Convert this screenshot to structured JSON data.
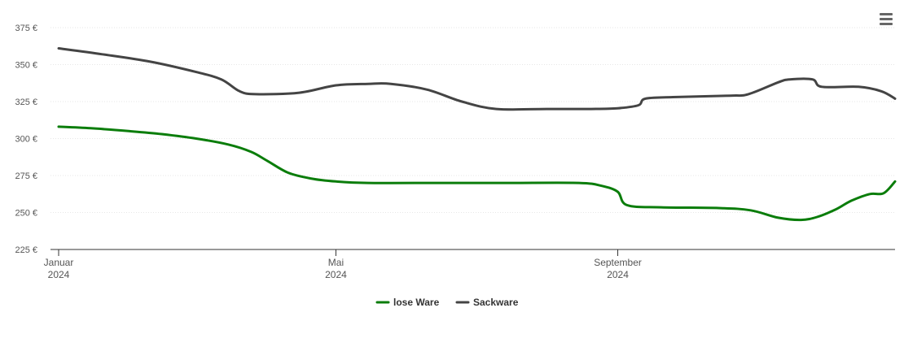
{
  "chart_data": {
    "type": "line",
    "x_axis": {
      "type": "datetime",
      "range": [
        "2024-01-01",
        "2024-12-31"
      ],
      "ticks": [
        {
          "date": "2024-01-01",
          "label": "Januar",
          "year": "2024"
        },
        {
          "date": "2024-05-01",
          "label": "Mai",
          "year": "2024"
        },
        {
          "date": "2024-09-01",
          "label": "September",
          "year": "2024"
        }
      ]
    },
    "y_axis": {
      "ylim": [
        225,
        375
      ],
      "ticks": [
        225,
        250,
        275,
        300,
        325,
        350,
        375
      ],
      "tick_labels": [
        "225 €",
        "250 €",
        "275 €",
        "300 €",
        "325 €",
        "350 €",
        "375 €"
      ]
    },
    "grid": true,
    "legend": "bottom-center",
    "series": [
      {
        "name": "lose Ware",
        "color": "#0b7d0b",
        "points": [
          [
            "2024-01-01",
            308
          ],
          [
            "2024-01-15",
            307
          ],
          [
            "2024-02-01",
            305
          ],
          [
            "2024-02-15",
            303
          ],
          [
            "2024-03-01",
            300
          ],
          [
            "2024-03-15",
            296
          ],
          [
            "2024-03-25",
            291
          ],
          [
            "2024-04-01",
            285
          ],
          [
            "2024-04-10",
            277
          ],
          [
            "2024-04-20",
            273
          ],
          [
            "2024-05-01",
            271
          ],
          [
            "2024-05-15",
            270
          ],
          [
            "2024-06-15",
            270
          ],
          [
            "2024-07-15",
            270
          ],
          [
            "2024-08-15",
            270
          ],
          [
            "2024-08-25",
            268
          ],
          [
            "2024-09-01",
            264
          ],
          [
            "2024-09-05",
            255
          ],
          [
            "2024-09-20",
            253.5
          ],
          [
            "2024-10-15",
            253
          ],
          [
            "2024-10-29",
            251.5
          ],
          [
            "2024-11-10",
            246.5
          ],
          [
            "2024-11-20",
            245
          ],
          [
            "2024-11-27",
            247
          ],
          [
            "2024-12-05",
            252
          ],
          [
            "2024-12-12",
            258
          ],
          [
            "2024-12-20",
            262.5
          ],
          [
            "2024-12-26",
            263
          ],
          [
            "2024-12-31",
            271
          ]
        ]
      },
      {
        "name": "Sackware",
        "color": "#444444",
        "points": [
          [
            "2024-01-01",
            361
          ],
          [
            "2024-01-20",
            357
          ],
          [
            "2024-02-10",
            352
          ],
          [
            "2024-03-01",
            345
          ],
          [
            "2024-03-12",
            340
          ],
          [
            "2024-03-20",
            332
          ],
          [
            "2024-03-27",
            330
          ],
          [
            "2024-04-15",
            331
          ],
          [
            "2024-05-01",
            336
          ],
          [
            "2024-05-15",
            337
          ],
          [
            "2024-05-25",
            337
          ],
          [
            "2024-06-10",
            333
          ],
          [
            "2024-06-25",
            325
          ],
          [
            "2024-07-10",
            320
          ],
          [
            "2024-08-01",
            320
          ],
          [
            "2024-08-20",
            320
          ],
          [
            "2024-09-01",
            320.5
          ],
          [
            "2024-09-10",
            322.5
          ],
          [
            "2024-09-13",
            327
          ],
          [
            "2024-09-25",
            328
          ],
          [
            "2024-10-20",
            329
          ],
          [
            "2024-10-28",
            330
          ],
          [
            "2024-11-10",
            338
          ],
          [
            "2024-11-15",
            340
          ],
          [
            "2024-11-25",
            340
          ],
          [
            "2024-11-29",
            335
          ],
          [
            "2024-12-15",
            335
          ],
          [
            "2024-12-25",
            332
          ],
          [
            "2024-12-31",
            327
          ]
        ]
      }
    ]
  },
  "menu": {
    "icon": "hamburger-menu-icon"
  }
}
